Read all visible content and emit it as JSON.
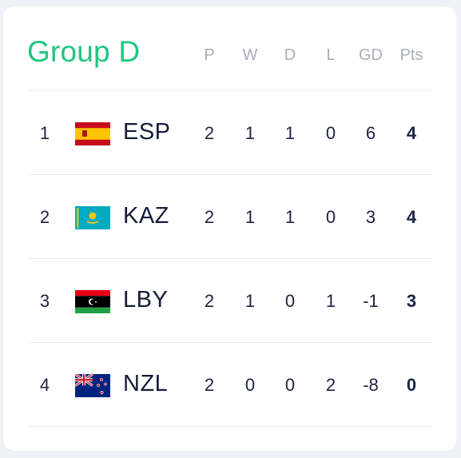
{
  "group": {
    "title": "Group D"
  },
  "columns": [
    "P",
    "W",
    "D",
    "L",
    "GD",
    "Pts"
  ],
  "rows": [
    {
      "rank": "1",
      "flag": "spain-flag-icon",
      "team": "ESP",
      "p": "2",
      "w": "1",
      "d": "1",
      "l": "0",
      "gd": "6",
      "pts": "4"
    },
    {
      "rank": "2",
      "flag": "kazakhstan-flag-icon",
      "team": "KAZ",
      "p": "2",
      "w": "1",
      "d": "1",
      "l": "0",
      "gd": "3",
      "pts": "4"
    },
    {
      "rank": "3",
      "flag": "libya-flag-icon",
      "team": "LBY",
      "p": "2",
      "w": "1",
      "d": "0",
      "l": "1",
      "gd": "-1",
      "pts": "3"
    },
    {
      "rank": "4",
      "flag": "new-zealand-flag-icon",
      "team": "NZL",
      "p": "2",
      "w": "0",
      "d": "0",
      "l": "2",
      "gd": "-8",
      "pts": "0"
    }
  ],
  "colors": {
    "accent": "#1ec77e",
    "text": "#141c38",
    "header": "#a9aeb8",
    "divider": "#e9ecf0"
  }
}
